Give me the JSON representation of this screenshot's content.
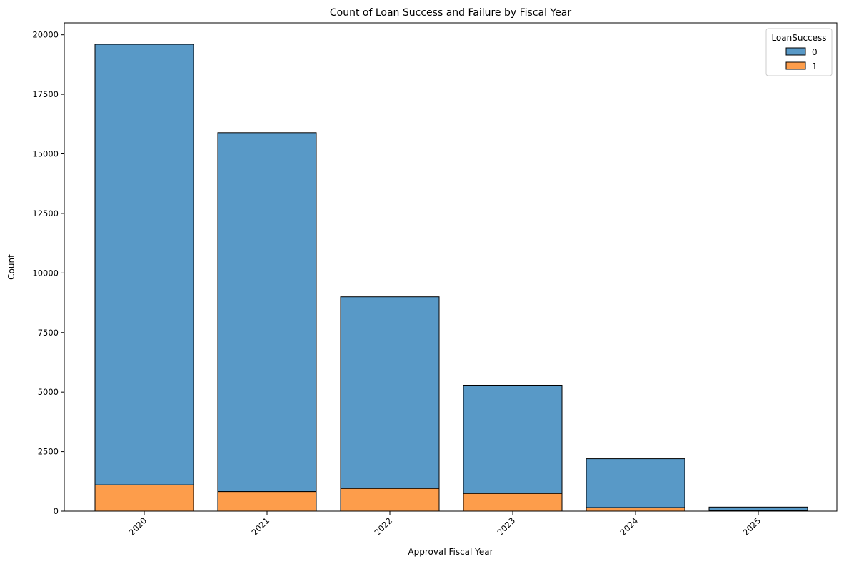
{
  "chart_data": {
    "type": "bar",
    "stacked": true,
    "title": "Count of Loan Success and Failure by Fiscal Year",
    "xlabel": "Approval Fiscal Year",
    "ylabel": "Count",
    "categories": [
      "2020",
      "2021",
      "2022",
      "2023",
      "2024",
      "2025"
    ],
    "series": [
      {
        "name": "0",
        "color": "#5899c7",
        "values": [
          18500,
          15070,
          8050,
          4550,
          2050,
          150
        ]
      },
      {
        "name": "1",
        "color": "#fd9d4b",
        "values": [
          1100,
          820,
          950,
          740,
          150,
          20
        ]
      }
    ],
    "ylim": [
      0,
      20500
    ],
    "yticks": [
      0,
      2500,
      5000,
      7500,
      10000,
      12500,
      15000,
      17500,
      20000
    ],
    "ytick_labels": [
      "0",
      "2500",
      "5000",
      "7500",
      "10000",
      "12500",
      "15000",
      "17500",
      "20000"
    ],
    "grid": false,
    "legend": {
      "title": "LoanSuccess",
      "placement": "top-right"
    }
  }
}
